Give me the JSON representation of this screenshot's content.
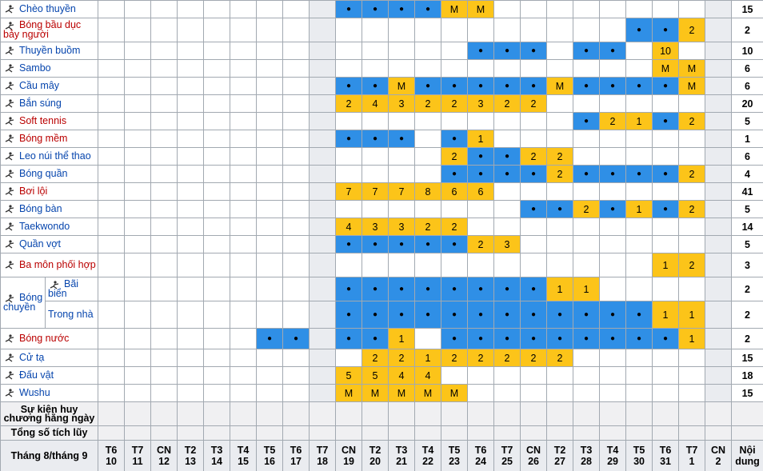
{
  "rows": [
    {
      "sport": "Chèo thuyền",
      "cells": [
        null,
        null,
        null,
        null,
        null,
        null,
        null,
        null,
        null,
        "●",
        "●",
        "●",
        "●",
        "M",
        "M",
        null,
        null,
        null,
        null,
        null,
        null,
        null,
        null,
        null
      ],
      "total": 15
    },
    {
      "sport": "Bóng bầu dục bảy người",
      "color": "#ba0000",
      "cells": [
        null,
        null,
        null,
        null,
        null,
        null,
        null,
        null,
        null,
        null,
        null,
        null,
        null,
        null,
        null,
        null,
        null,
        null,
        null,
        null,
        "●",
        "●",
        2,
        null
      ],
      "total": 2
    },
    {
      "sport": "Thuyền buồm",
      "cells": [
        null,
        null,
        null,
        null,
        null,
        null,
        null,
        null,
        null,
        null,
        null,
        null,
        null,
        null,
        "●",
        "●",
        "●",
        null,
        "●",
        "●",
        null,
        10,
        null,
        null
      ],
      "total": 10
    },
    {
      "sport": "Sambo",
      "cells": [
        null,
        null,
        null,
        null,
        null,
        null,
        null,
        null,
        null,
        null,
        null,
        null,
        null,
        null,
        null,
        null,
        null,
        null,
        null,
        null,
        null,
        "M",
        "M",
        null
      ],
      "total": 6
    },
    {
      "sport": "Cầu mây",
      "cells": [
        null,
        null,
        null,
        null,
        null,
        null,
        null,
        null,
        null,
        "●",
        "●",
        "M",
        "●",
        "●",
        "●",
        "●",
        "●",
        "M",
        "●",
        "●",
        "●",
        "●",
        "M",
        null
      ],
      "total": 6
    },
    {
      "sport": "Bắn súng",
      "cells": [
        null,
        null,
        null,
        null,
        null,
        null,
        null,
        null,
        null,
        2,
        4,
        3,
        2,
        2,
        3,
        2,
        2,
        null,
        null,
        null,
        null,
        null,
        null,
        null
      ],
      "total": 20
    },
    {
      "sport": "Soft tennis",
      "color": "#ba0000",
      "cells": [
        null,
        null,
        null,
        null,
        null,
        null,
        null,
        null,
        null,
        null,
        null,
        null,
        null,
        null,
        null,
        null,
        null,
        null,
        "●",
        2,
        1,
        "●",
        2,
        null
      ],
      "total": 5
    },
    {
      "sport": "Bóng mềm",
      "color": "#ba0000",
      "cells": [
        null,
        null,
        null,
        null,
        null,
        null,
        null,
        null,
        null,
        "●",
        "●",
        "●",
        null,
        "●",
        1,
        null,
        null,
        null,
        null,
        null,
        null,
        null,
        null,
        null
      ],
      "total": 1
    },
    {
      "sport": "Leo núi thể thao",
      "cells": [
        null,
        null,
        null,
        null,
        null,
        null,
        null,
        null,
        null,
        null,
        null,
        null,
        null,
        2,
        "●",
        "●",
        2,
        2,
        null,
        null,
        null,
        null,
        null,
        null
      ],
      "total": 6
    },
    {
      "sport": "Bóng quần",
      "cells": [
        null,
        null,
        null,
        null,
        null,
        null,
        null,
        null,
        null,
        null,
        null,
        null,
        null,
        "●",
        "●",
        "●",
        "●",
        2,
        "●",
        "●",
        "●",
        "●",
        2,
        null
      ],
      "total": 4
    },
    {
      "sport": "Bơi lội",
      "color": "#ba0000",
      "cells": [
        null,
        null,
        null,
        null,
        null,
        null,
        null,
        null,
        null,
        7,
        7,
        7,
        8,
        6,
        6,
        null,
        null,
        null,
        null,
        null,
        null,
        null,
        null,
        null
      ],
      "total": 41
    },
    {
      "sport": "Bóng bàn",
      "cells": [
        null,
        null,
        null,
        null,
        null,
        null,
        null,
        null,
        null,
        null,
        null,
        null,
        null,
        null,
        null,
        null,
        "●",
        "●",
        2,
        "●",
        1,
        "●",
        2,
        null
      ],
      "total": 5
    },
    {
      "sport": "Taekwondo",
      "cells": [
        null,
        null,
        null,
        null,
        null,
        null,
        null,
        null,
        null,
        4,
        3,
        3,
        2,
        2,
        null,
        null,
        null,
        null,
        null,
        null,
        null,
        null,
        null,
        null
      ],
      "total": 14
    },
    {
      "sport": "Quần vợt",
      "cells": [
        null,
        null,
        null,
        null,
        null,
        null,
        null,
        null,
        null,
        "●",
        "●",
        "●",
        "●",
        "●",
        2,
        3,
        null,
        null,
        null,
        null,
        null,
        null,
        null,
        null
      ],
      "total": 5
    },
    {
      "sport": "Ba môn phối hợp",
      "color": "#ba0000",
      "cells": [
        null,
        null,
        null,
        null,
        null,
        null,
        null,
        null,
        null,
        null,
        null,
        null,
        null,
        null,
        null,
        null,
        null,
        null,
        null,
        null,
        null,
        1,
        2,
        null
      ],
      "total": 3
    },
    {
      "group": "Bóng chuyền",
      "subrows": [
        {
          "sport": "Bãi biển",
          "cells": [
            null,
            null,
            null,
            null,
            null,
            null,
            null,
            null,
            null,
            "●",
            "●",
            "●",
            "●",
            "●",
            "●",
            "●",
            "●",
            1,
            1,
            null,
            null,
            null,
            null,
            null
          ],
          "total": 2
        },
        {
          "sport": "Trong nhà",
          "cells": [
            null,
            null,
            null,
            null,
            null,
            null,
            null,
            null,
            null,
            "●",
            "●",
            "●",
            "●",
            "●",
            "●",
            "●",
            "●",
            "●",
            "●",
            "●",
            "●",
            1,
            1,
            null
          ],
          "total": 2
        }
      ]
    },
    {
      "sport": "Bóng nước",
      "color": "#ba0000",
      "cells": [
        null,
        null,
        null,
        null,
        null,
        null,
        "●",
        "●",
        null,
        "●",
        "●",
        1,
        null,
        "●",
        "●",
        "●",
        "●",
        "●",
        "●",
        "●",
        "●",
        "●",
        1,
        null
      ],
      "total": 2
    },
    {
      "sport": "Cử tạ",
      "cells": [
        null,
        null,
        null,
        null,
        null,
        null,
        null,
        null,
        null,
        null,
        2,
        2,
        1,
        2,
        2,
        2,
        2,
        2,
        null,
        null,
        null,
        null,
        null,
        null
      ],
      "total": 15
    },
    {
      "sport": "Đấu vật",
      "cells": [
        null,
        null,
        null,
        null,
        null,
        null,
        null,
        null,
        null,
        5,
        5,
        4,
        4,
        null,
        null,
        null,
        null,
        null,
        null,
        null,
        null,
        null,
        null,
        null
      ],
      "total": 18
    },
    {
      "sport": "Wushu",
      "cells": [
        null,
        null,
        null,
        null,
        null,
        null,
        null,
        null,
        null,
        "M",
        "M",
        "M",
        "M",
        "M",
        null,
        null,
        null,
        null,
        null,
        null,
        null,
        null,
        null,
        null
      ],
      "total": 15
    }
  ],
  "summary_rows": [
    {
      "label": "Sự kiện huy chương hằng ngày"
    },
    {
      "label": "Tổng số tích lũy"
    }
  ],
  "footer": {
    "label": "Tháng 8/tháng 9",
    "days": [
      {
        "weekday": "T6",
        "day": 10
      },
      {
        "weekday": "T7",
        "day": 11
      },
      {
        "weekday": "CN",
        "day": 12
      },
      {
        "weekday": "T2",
        "day": 13
      },
      {
        "weekday": "T3",
        "day": 14
      },
      {
        "weekday": "T4",
        "day": 15
      },
      {
        "weekday": "T5",
        "day": 16
      },
      {
        "weekday": "T6",
        "day": 17
      },
      {
        "weekday": "T7",
        "day": 18
      },
      {
        "weekday": "CN",
        "day": 19
      },
      {
        "weekday": "T2",
        "day": 20
      },
      {
        "weekday": "T3",
        "day": 21
      },
      {
        "weekday": "T4",
        "day": 22
      },
      {
        "weekday": "T5",
        "day": 23
      },
      {
        "weekday": "T6",
        "day": 24
      },
      {
        "weekday": "T7",
        "day": 25
      },
      {
        "weekday": "CN",
        "day": 26
      },
      {
        "weekday": "T2",
        "day": 27
      },
      {
        "weekday": "T3",
        "day": 28
      },
      {
        "weekday": "T4",
        "day": 29
      },
      {
        "weekday": "T5",
        "day": 30
      },
      {
        "weekday": "T6",
        "day": 31
      },
      {
        "weekday": "T7",
        "day": 1
      },
      {
        "weekday": "CN",
        "day": 2
      }
    ],
    "total_label": "Nội dung"
  }
}
